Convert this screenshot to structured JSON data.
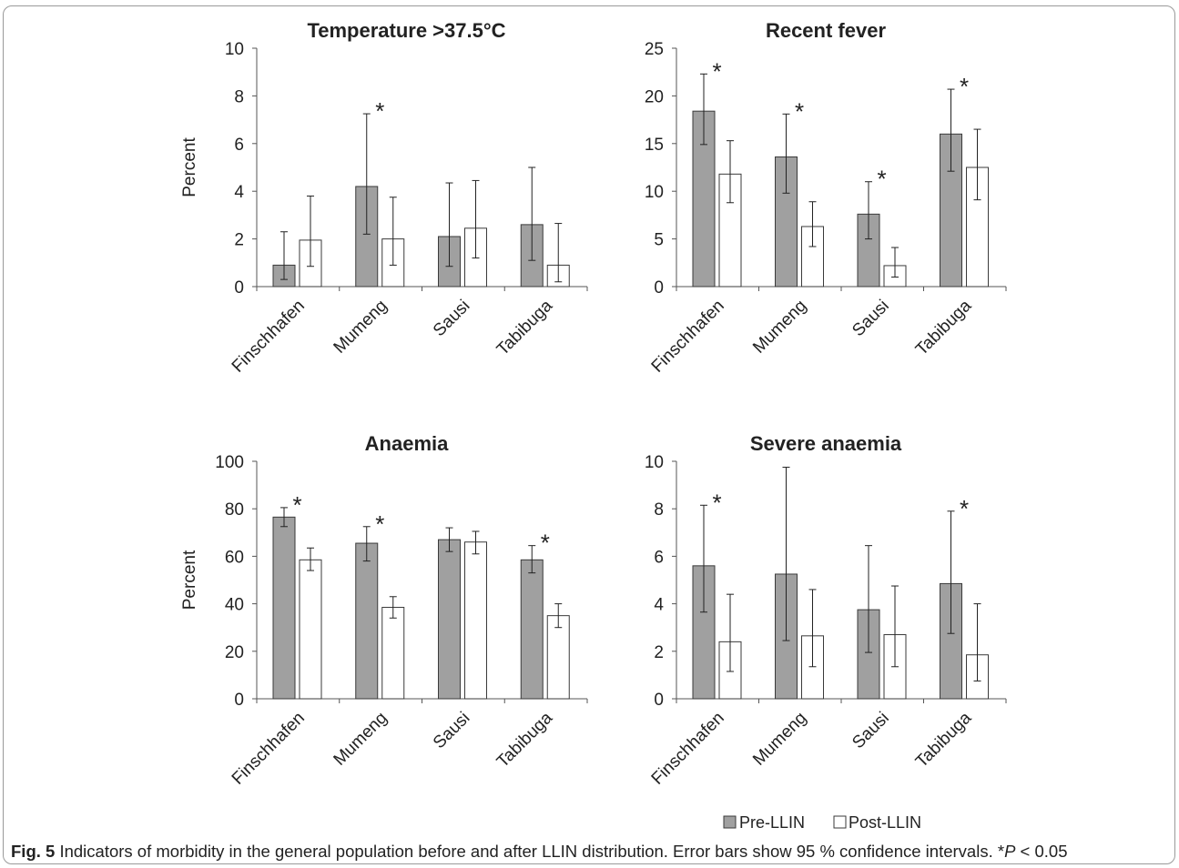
{
  "figure": {
    "caption_label": "Fig. 5",
    "caption_body": " Indicators of morbidity in the general population before and after LLIN distribution. Error bars show 95 % confidence intervals. *",
    "caption_p": "P",
    "caption_tail": " < 0.05",
    "legend": {
      "pre_label": "Pre-LLIN",
      "post_label": "Post-LLIN",
      "placement": "bottom-right"
    },
    "colors": {
      "pre": "#a0a0a0",
      "post": "#ffffff",
      "outline": "#3a3a3a",
      "text": "#222222"
    }
  },
  "chart_data": [
    {
      "type": "bar",
      "title": "Temperature >37.5°C",
      "ylabel": "Percent",
      "xlabel": "",
      "ylim": [
        0,
        10
      ],
      "yticks": [
        0,
        2,
        4,
        6,
        8,
        10
      ],
      "categories": [
        "Finschhafen",
        "Mumeng",
        "Sausi",
        "Tabibuga"
      ],
      "series": [
        {
          "name": "Pre-LLIN",
          "values": [
            0.9,
            4.2,
            2.1,
            2.6
          ],
          "ci_low": [
            0.3,
            2.2,
            0.85,
            1.1
          ],
          "ci_high": [
            2.3,
            7.25,
            4.35,
            5.0
          ]
        },
        {
          "name": "Post-LLIN",
          "values": [
            1.95,
            2.0,
            2.45,
            0.9
          ],
          "ci_low": [
            0.85,
            0.9,
            1.2,
            0.2
          ],
          "ci_high": [
            3.8,
            3.75,
            4.45,
            2.65
          ]
        }
      ],
      "significance_marker": "*",
      "significant": [
        false,
        true,
        false,
        false
      ],
      "grid": false
    },
    {
      "type": "bar",
      "title": "Recent fever",
      "ylabel": "",
      "xlabel": "",
      "ylim": [
        0,
        25
      ],
      "yticks": [
        0,
        5,
        10,
        15,
        20,
        25
      ],
      "categories": [
        "Finschhafen",
        "Mumeng",
        "Sausi",
        "Tabibuga"
      ],
      "series": [
        {
          "name": "Pre-LLIN",
          "values": [
            18.4,
            13.6,
            7.6,
            16.0
          ],
          "ci_low": [
            14.9,
            9.8,
            5.0,
            12.1
          ],
          "ci_high": [
            22.3,
            18.1,
            11.0,
            20.7
          ]
        },
        {
          "name": "Post-LLIN",
          "values": [
            11.8,
            6.3,
            2.2,
            12.5
          ],
          "ci_low": [
            8.8,
            4.2,
            1.0,
            9.1
          ],
          "ci_high": [
            15.3,
            8.9,
            4.1,
            16.5
          ]
        }
      ],
      "significance_marker": "*",
      "significant": [
        true,
        true,
        true,
        true
      ],
      "grid": false
    },
    {
      "type": "bar",
      "title": "Anaemia",
      "ylabel": "Percent",
      "xlabel": "",
      "ylim": [
        0,
        100
      ],
      "yticks": [
        0,
        20,
        40,
        60,
        80,
        100
      ],
      "categories": [
        "Finschhafen",
        "Mumeng",
        "Sausi",
        "Tabibuga"
      ],
      "series": [
        {
          "name": "Pre-LLIN",
          "values": [
            76.5,
            65.5,
            67.0,
            58.5
          ],
          "ci_low": [
            72.5,
            58.0,
            62.0,
            53.0
          ],
          "ci_high": [
            80.5,
            72.5,
            72.0,
            64.5
          ]
        },
        {
          "name": "Post-LLIN",
          "values": [
            58.5,
            38.5,
            66.0,
            35.0
          ],
          "ci_low": [
            54.0,
            34.0,
            61.0,
            30.0
          ],
          "ci_high": [
            63.5,
            43.0,
            70.5,
            40.0
          ]
        }
      ],
      "significance_marker": "*",
      "significant": [
        true,
        true,
        false,
        true
      ],
      "grid": false
    },
    {
      "type": "bar",
      "title": "Severe anaemia",
      "ylabel": "",
      "xlabel": "",
      "ylim": [
        0,
        10
      ],
      "yticks": [
        0,
        2,
        4,
        6,
        8,
        10
      ],
      "categories": [
        "Finschhafen",
        "Mumeng",
        "Sausi",
        "Tabibuga"
      ],
      "series": [
        {
          "name": "Pre-LLIN",
          "values": [
            5.6,
            5.25,
            3.75,
            4.85
          ],
          "ci_low": [
            3.65,
            2.45,
            1.95,
            2.75
          ],
          "ci_high": [
            8.15,
            9.75,
            6.45,
            7.9
          ]
        },
        {
          "name": "Post-LLIN",
          "values": [
            2.4,
            2.65,
            2.7,
            1.85
          ],
          "ci_low": [
            1.15,
            1.35,
            1.35,
            0.75
          ],
          "ci_high": [
            4.4,
            4.6,
            4.75,
            4.0
          ]
        }
      ],
      "significance_marker": "*",
      "significant": [
        true,
        false,
        false,
        true
      ],
      "grid": false
    }
  ]
}
